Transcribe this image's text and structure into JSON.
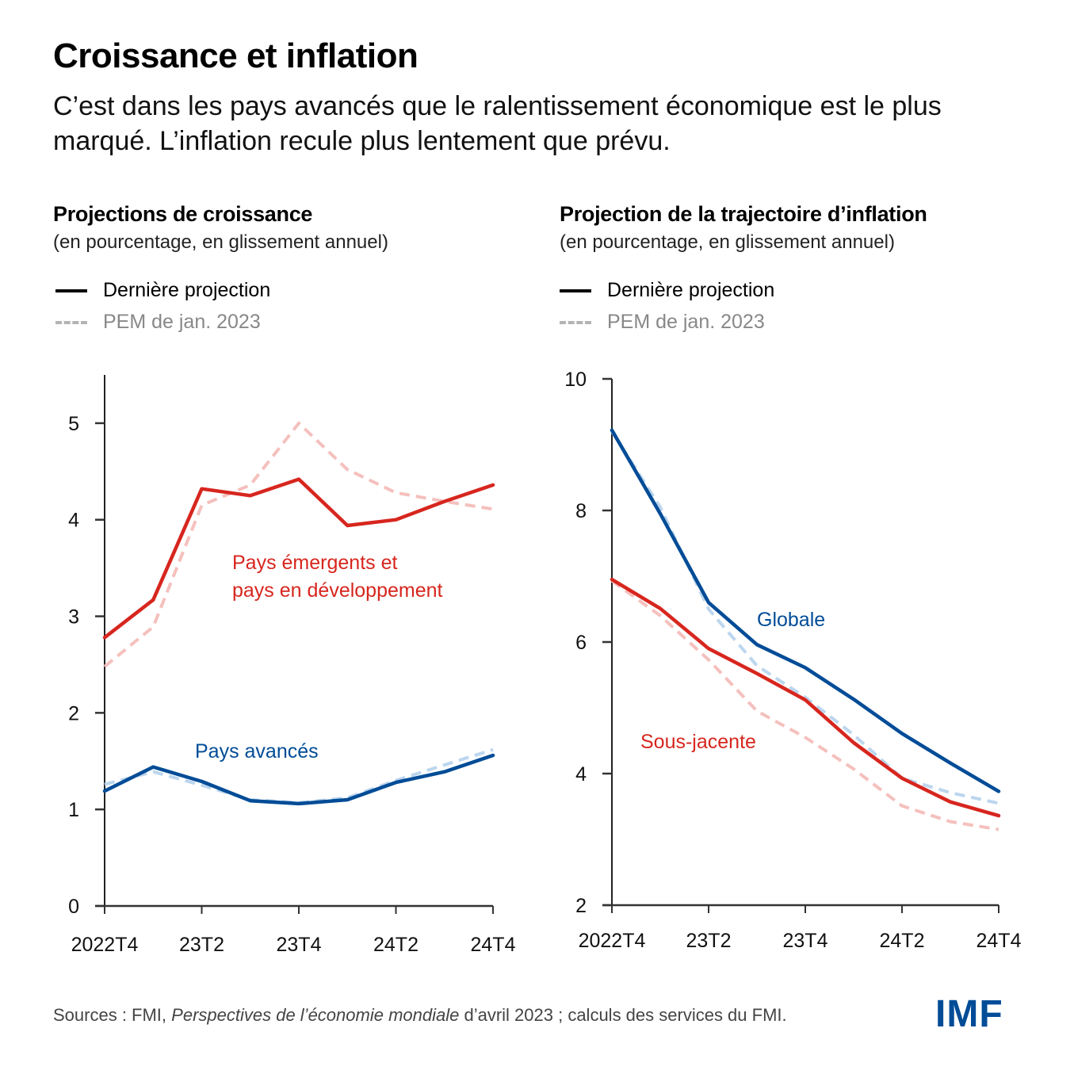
{
  "header": {
    "title": "Croissance et inflation",
    "subtitle": "C’est dans les pays avancés que le ralentissement économique est le plus marqué. L’inflation recule plus lentement que prévu."
  },
  "legend": {
    "latest": "Dernière projection",
    "previous": "PEM de jan. 2023"
  },
  "colors": {
    "red": "#d7261e",
    "red_light": "#f4c0bd",
    "blue": "#004c97",
    "blue_light": "#bcd6ee"
  },
  "footer": {
    "prefix": "Sources : FMI, ",
    "italic": "Perspectives de l’économie mondiale",
    "suffix": " d’avril 2023 ; calculs des services du FMI."
  },
  "logo": "IMF",
  "chart_data": [
    {
      "type": "line",
      "title": "Projections de croissance",
      "subtitle": "(en pourcentage, en glissement annuel)",
      "xlabel": "",
      "ylabel": "",
      "x": [
        "2022T4",
        "23T1",
        "23T2",
        "23T3",
        "23T4",
        "24T1",
        "24T2",
        "24T3",
        "24T4"
      ],
      "x_tick_labels": [
        "2022T4",
        "23T2",
        "23T4",
        "24T2",
        "24T4"
      ],
      "y_ticks": [
        0,
        1,
        2,
        3,
        4,
        5
      ],
      "ylim": [
        0,
        5.5
      ],
      "grid": false,
      "legend_position": "top-left",
      "series": [
        {
          "name": "Pays émergents et pays en développement — Dernière projection",
          "label": "Pays émergents et|pays en développement",
          "color": "#d7261e",
          "style": "solid",
          "values": [
            2.78,
            3.17,
            4.32,
            4.25,
            4.42,
            3.94,
            4.0,
            4.19,
            4.36
          ]
        },
        {
          "name": "Pays émergents et pays en développement — PEM de jan. 2023",
          "color": "#f4c0bd",
          "style": "dashed",
          "values": [
            2.48,
            2.89,
            4.15,
            4.36,
            5.0,
            4.52,
            4.28,
            4.19,
            4.11
          ]
        },
        {
          "name": "Pays avancés — Dernière projection",
          "label": "Pays avancés",
          "color": "#004c97",
          "style": "solid",
          "values": [
            1.19,
            1.44,
            1.29,
            1.09,
            1.06,
            1.1,
            1.28,
            1.39,
            1.56
          ]
        },
        {
          "name": "Pays avancés — PEM de jan. 2023",
          "color": "#bcd6ee",
          "style": "dashed",
          "values": [
            1.26,
            1.39,
            1.25,
            1.1,
            1.07,
            1.12,
            1.3,
            1.46,
            1.62
          ]
        }
      ]
    },
    {
      "type": "line",
      "title": "Projection de la trajectoire d’inflation",
      "subtitle": "(en pourcentage, en glissement annuel)",
      "xlabel": "",
      "ylabel": "",
      "x": [
        "2022T4",
        "23T1",
        "23T2",
        "23T3",
        "23T4",
        "24T1",
        "24T2",
        "24T3",
        "24T4"
      ],
      "x_tick_labels": [
        "2022T4",
        "23T2",
        "23T4",
        "24T2",
        "24T4"
      ],
      "y_ticks": [
        2,
        4,
        6,
        8,
        10
      ],
      "ylim": [
        2,
        10
      ],
      "grid": false,
      "legend_position": "top-left",
      "series": [
        {
          "name": "Globale — Dernière projection",
          "label": "Globale",
          "color": "#004c97",
          "style": "solid",
          "values": [
            9.22,
            7.95,
            6.6,
            5.96,
            5.61,
            5.13,
            4.61,
            4.16,
            3.73
          ]
        },
        {
          "name": "Globale — PEM de jan. 2023",
          "color": "#bcd6ee",
          "style": "dashed",
          "values": [
            9.2,
            8.05,
            6.5,
            5.64,
            5.16,
            4.59,
            3.93,
            3.71,
            3.55
          ]
        },
        {
          "name": "Sous-jacente — Dernière projection",
          "label": "Sous-jacente",
          "color": "#d7261e",
          "style": "solid",
          "values": [
            6.95,
            6.51,
            5.9,
            5.52,
            5.12,
            4.47,
            3.93,
            3.57,
            3.36
          ]
        },
        {
          "name": "Sous-jacente — PEM de jan. 2023",
          "color": "#f4c0bd",
          "style": "dashed",
          "values": [
            6.93,
            6.4,
            5.73,
            4.95,
            4.55,
            4.07,
            3.51,
            3.27,
            3.15
          ]
        }
      ]
    }
  ]
}
